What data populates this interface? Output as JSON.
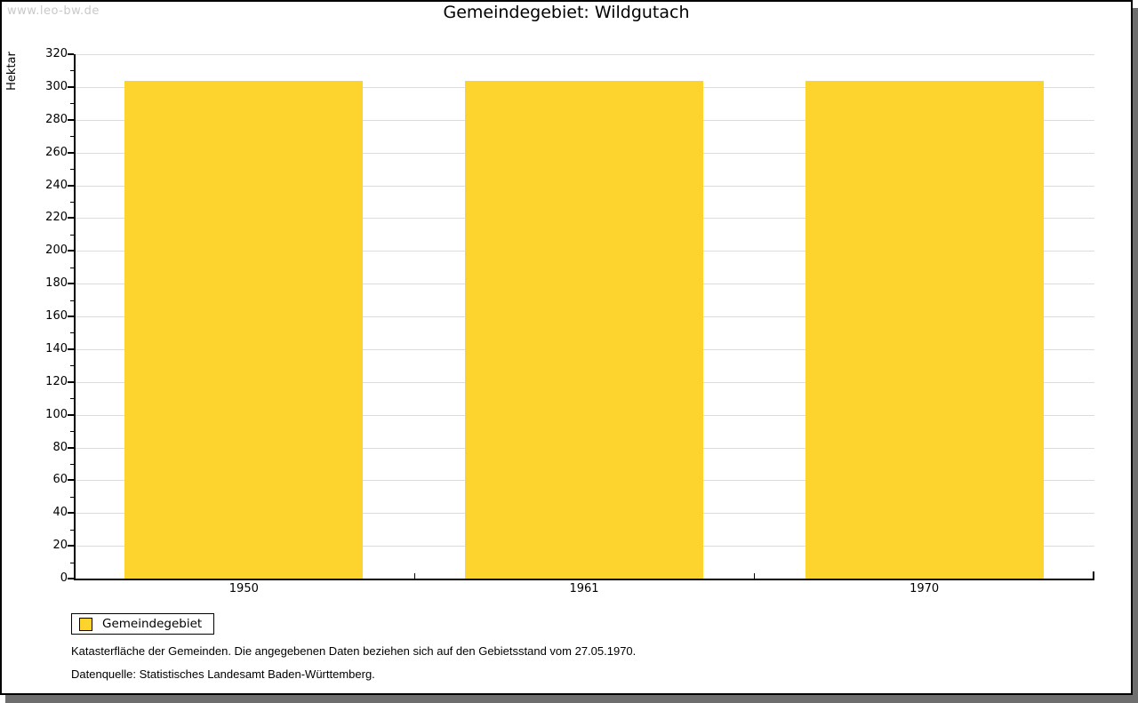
{
  "watermark": "www.leo-bw.de",
  "chart_data": {
    "type": "bar",
    "title": "Gemeindegebiet: Wildgutach",
    "categories": [
      "1950",
      "1961",
      "1970"
    ],
    "series": [
      {
        "name": "Gemeindegebiet",
        "values": [
          304,
          304,
          304
        ],
        "color": "#FCD42D"
      }
    ],
    "xlabel": "",
    "ylabel": "Hektar",
    "ylim": [
      0,
      320
    ],
    "y_ticks": [
      0,
      20,
      40,
      60,
      80,
      100,
      120,
      140,
      160,
      180,
      200,
      220,
      240,
      260,
      280,
      300,
      320
    ],
    "y_minor_step": 10,
    "grid": "horizontal-major",
    "legend_position": "bottom-left"
  },
  "legend": {
    "items": [
      {
        "label": "Gemeindegebiet",
        "color": "#FCD42D"
      }
    ]
  },
  "footer": {
    "note": "Katasterfläche der Gemeinden. Die angegebenen Daten beziehen sich auf den Gebietsstand vom 27.05.1970.",
    "source": "Datenquelle: Statistisches Landesamt Baden-Württemberg."
  },
  "colors": {
    "bar": "#FCD42D",
    "grid": "#DCDCDC",
    "axis": "#000000",
    "watermark": "#C9C9C9",
    "shadow": "#6E6E6E"
  }
}
